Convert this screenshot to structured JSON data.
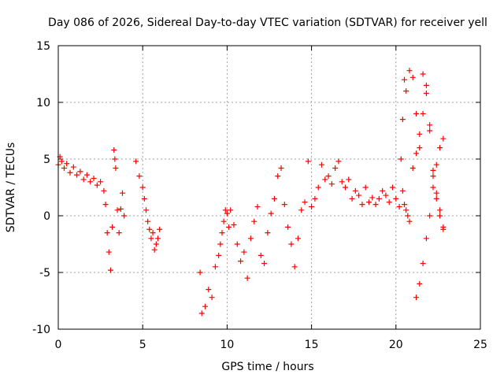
{
  "chart_data": {
    "type": "scatter",
    "title": "Day 086 of 2026, Sidereal Day-to-day VTEC variation (SDTVAR) for receiver yell",
    "xlabel": "GPS time / hours",
    "ylabel": "SDTVAR / TECUs",
    "xlim": [
      0,
      25
    ],
    "ylim": [
      -10,
      15
    ],
    "xticks": [
      0,
      5,
      10,
      15,
      20,
      25
    ],
    "yticks": [
      -10,
      -5,
      0,
      5,
      10,
      15
    ],
    "xtick_labels": [
      "0",
      "5",
      "10",
      "15",
      "20",
      "25"
    ],
    "ytick_labels": [
      "-10",
      "-5",
      "0",
      "5",
      "10",
      "15"
    ],
    "grid": true,
    "marker": "+",
    "point_color": "#ff0000",
    "series": [
      {
        "name": "SDTVAR",
        "x": [
          0.0,
          0.1,
          0.2,
          0.35,
          0.5,
          0.7,
          0.9,
          1.1,
          1.3,
          1.5,
          1.7,
          1.9,
          2.1,
          2.3,
          2.5,
          2.7,
          2.8,
          2.9,
          3.0,
          3.1,
          3.2,
          3.3,
          3.35,
          3.4,
          3.5,
          3.6,
          3.7,
          3.8,
          3.9,
          4.6,
          4.8,
          5.0,
          5.1,
          5.2,
          5.3,
          5.4,
          5.5,
          5.6,
          5.7,
          5.8,
          5.9,
          6.0,
          8.4,
          8.5,
          8.7,
          8.9,
          9.1,
          9.3,
          9.5,
          9.6,
          9.7,
          9.8,
          9.9,
          10.0,
          10.1,
          10.2,
          10.4,
          10.6,
          10.8,
          11.0,
          11.2,
          11.4,
          11.6,
          11.8,
          12.0,
          12.2,
          12.4,
          12.6,
          12.8,
          13.0,
          13.2,
          13.4,
          13.6,
          13.8,
          14.0,
          14.2,
          14.4,
          14.6,
          14.8,
          15.0,
          15.2,
          15.4,
          15.6,
          15.8,
          16.0,
          16.2,
          16.4,
          16.6,
          16.8,
          17.0,
          17.2,
          17.4,
          17.6,
          17.8,
          18.0,
          18.2,
          18.4,
          18.6,
          18.8,
          19.0,
          19.2,
          19.4,
          19.6,
          19.8,
          20.0,
          20.2,
          20.4,
          20.5,
          20.6,
          20.7,
          20.8,
          21.0,
          21.2,
          21.4,
          21.6,
          21.8,
          22.0,
          22.2,
          22.4,
          22.6,
          22.8,
          20.3,
          20.4,
          20.5,
          20.6,
          20.8,
          21.0,
          21.2,
          21.4,
          21.6,
          21.8,
          22.0,
          22.2,
          22.4,
          22.6,
          22.8,
          21.2,
          21.4,
          21.6,
          21.8,
          22.0,
          22.2,
          22.4,
          22.6,
          22.8
        ],
        "y": [
          4.5,
          5.2,
          4.8,
          4.2,
          4.6,
          3.8,
          4.3,
          3.6,
          3.9,
          3.2,
          3.6,
          3.0,
          3.3,
          2.7,
          3.0,
          2.2,
          1.0,
          -1.5,
          -3.2,
          -4.8,
          -1.0,
          5.8,
          5.0,
          4.2,
          0.5,
          -1.5,
          0.6,
          2.0,
          0.0,
          4.8,
          3.5,
          2.5,
          1.5,
          0.5,
          -0.5,
          -1.2,
          -2.0,
          -1.5,
          -3.0,
          -2.5,
          -2.0,
          -1.2,
          -5.0,
          -8.6,
          -8.0,
          -6.5,
          -7.2,
          -4.5,
          -3.5,
          -2.5,
          -1.5,
          -0.5,
          0.5,
          0.2,
          -1.0,
          0.5,
          -0.8,
          -2.5,
          -4.0,
          -3.2,
          -5.5,
          -2.0,
          -0.5,
          0.8,
          -3.5,
          -4.2,
          -1.5,
          0.2,
          1.5,
          3.5,
          4.2,
          1.0,
          -1.0,
          -2.5,
          -4.5,
          -2.0,
          0.5,
          1.2,
          4.8,
          0.8,
          1.5,
          2.5,
          4.5,
          3.2,
          3.5,
          2.8,
          4.2,
          4.8,
          3.0,
          2.5,
          3.2,
          1.5,
          2.2,
          1.8,
          1.0,
          2.5,
          1.2,
          1.6,
          1.0,
          1.5,
          2.2,
          1.8,
          1.2,
          2.5,
          1.5,
          0.8,
          2.2,
          1.0,
          0.5,
          0.0,
          -0.5,
          4.2,
          5.5,
          7.2,
          9.0,
          10.8,
          8.0,
          3.5,
          2.0,
          0.5,
          -1.0,
          5.0,
          8.5,
          12.0,
          11.0,
          12.8,
          12.2,
          9.0,
          6.0,
          12.5,
          11.5,
          7.5,
          4.0,
          1.5,
          0.0,
          -1.2,
          -7.2,
          -6.0,
          -4.2,
          -2.0,
          0.0,
          2.5,
          4.5,
          6.0,
          6.8
        ]
      }
    ]
  }
}
